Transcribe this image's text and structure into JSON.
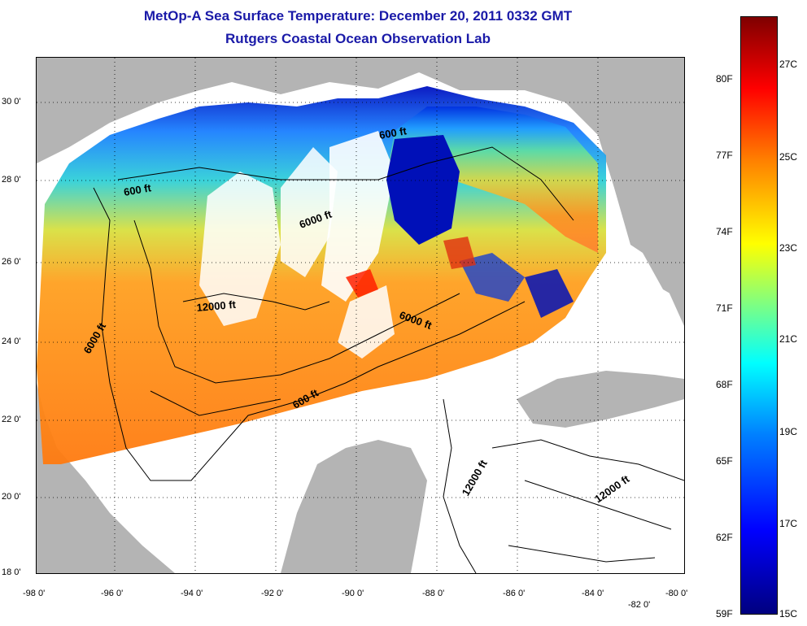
{
  "title": "MetOp-A Sea Surface Temperature:  December 20, 2011 0332 GMT",
  "subtitle": "Rutgers Coastal Ocean Observation Lab",
  "lat_labels": [
    "30 0'",
    "28 0'",
    "26 0'",
    "24 0'",
    "22 0'",
    "20 0'",
    "18 0'"
  ],
  "lon_labels": [
    "-98 0'",
    "-96 0'",
    "-94 0'",
    "-92 0'",
    "-90 0'",
    "-88 0'",
    "-86 0'",
    "-84 0'",
    "-82 0'",
    "-80 0'"
  ],
  "colorbar": {
    "fahrenheit": [
      "80F",
      "77F",
      "74F",
      "71F",
      "68F",
      "65F",
      "62F",
      "59F"
    ],
    "celsius": [
      "27C",
      "25C",
      "23C",
      "21C",
      "19C",
      "17C",
      "15C"
    ],
    "colors": [
      "#00007f",
      "#0000ff",
      "#0080ff",
      "#00ffff",
      "#80ff80",
      "#ffff00",
      "#ff8000",
      "#ff0000",
      "#7f0000"
    ]
  },
  "contour_labels": [
    "600 ft",
    "600 ft",
    "6000 ft",
    "12000 ft",
    "6000 ft",
    "6000 ft",
    "600 ft",
    "12000 ft",
    "12000 ft"
  ]
}
